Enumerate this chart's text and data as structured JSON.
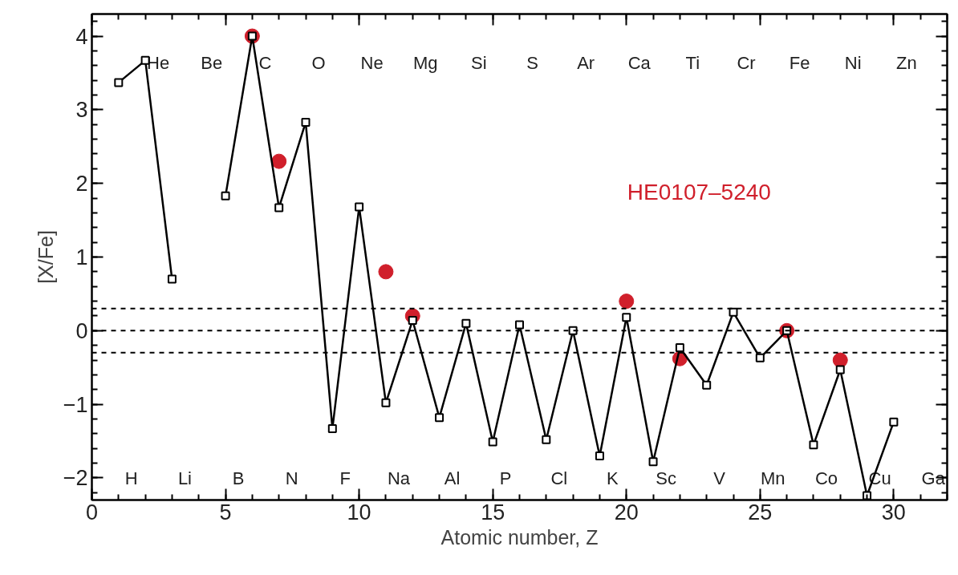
{
  "chart_data": {
    "type": "line",
    "xlabel": "Atomic number, Z",
    "ylabel": "[X/Fe]",
    "x": [
      1,
      2,
      3,
      4,
      5,
      6,
      7,
      8,
      9,
      10,
      11,
      12,
      13,
      14,
      15,
      16,
      17,
      18,
      19,
      20,
      21,
      22,
      23,
      24,
      25,
      26,
      27,
      28,
      29,
      30
    ],
    "series": [
      {
        "color": "#000000",
        "marker": "square",
        "values": [
          3.37,
          3.67,
          0.7,
          null,
          1.83,
          4.0,
          1.67,
          2.83,
          -1.33,
          1.68,
          -0.98,
          0.14,
          -1.18,
          0.1,
          -1.51,
          0.08,
          -1.48,
          0.0,
          -1.7,
          0.18,
          -1.78,
          -0.23,
          -0.74,
          0.25,
          -0.37,
          0.0,
          -1.55,
          -0.53,
          -2.24,
          -1.24
        ]
      },
      {
        "type": "scatter",
        "name": "HE0107–5240",
        "color": "#d01f2b",
        "marker": "circle",
        "x": [
          6,
          7,
          11,
          12,
          20,
          22,
          26,
          28
        ],
        "values": [
          4.0,
          2.3,
          0.8,
          0.2,
          0.4,
          -0.38,
          0.0,
          -0.4
        ]
      }
    ],
    "xlim": [
      0,
      32
    ],
    "ylim": [
      -2.3,
      4.3
    ],
    "xticks": [
      0,
      5,
      10,
      15,
      20,
      25,
      30
    ],
    "yticks": [
      {
        "value": -2,
        "label": "−2"
      },
      {
        "value": -1,
        "label": "−1"
      },
      0,
      1,
      2,
      3,
      4
    ],
    "ref_lines": [
      {
        "axis": "y",
        "value": 0.3,
        "line_style": "dashed",
        "color": "#000000"
      },
      {
        "axis": "y",
        "value": 0,
        "line_style": "dashed",
        "color": "#000000"
      },
      {
        "axis": "y",
        "value": -0.3,
        "line_style": "dashed",
        "color": "#000000"
      }
    ],
    "annotations": [
      "H",
      "He",
      "Li",
      "Be",
      "B",
      "C",
      "N",
      "O",
      "F",
      "Ne",
      "Na",
      "Mg",
      "Al",
      "Si",
      "P",
      "S",
      "Cl",
      "Ar",
      "K",
      "Ca",
      "Sc",
      "Ti",
      "V",
      "Cr",
      "Mn",
      "Fe",
      "Co",
      "Ni",
      "Cu",
      "Zn",
      "Ga"
    ],
    "grid": false,
    "line_style": "solid"
  }
}
